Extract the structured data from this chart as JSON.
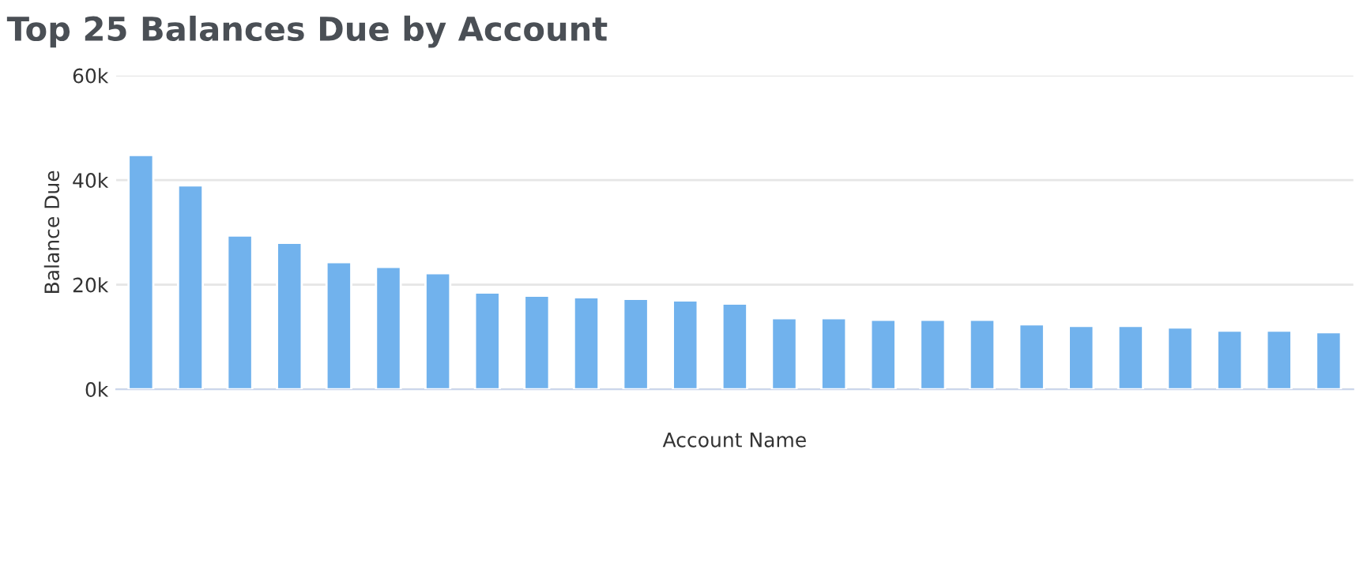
{
  "chart_data": {
    "type": "bar",
    "title": "Top 25 Balances Due by Account",
    "xlabel": "Account Name",
    "ylabel": "Balance Due",
    "categories": [
      null,
      null,
      null,
      null,
      null,
      null,
      null,
      null,
      null,
      null,
      null,
      null,
      null,
      null,
      null,
      null,
      null,
      null,
      null,
      null,
      null,
      null,
      null,
      null,
      null
    ],
    "series": [
      {
        "color": "#71b2ed",
        "values": [
          44800,
          39000,
          29400,
          28000,
          24300,
          23400,
          22200,
          18500,
          17900,
          17600,
          17300,
          17000,
          16400,
          13600,
          13600,
          13300,
          13300,
          13300,
          12400,
          12100,
          12100,
          11800,
          11200,
          11200,
          10900
        ]
      }
    ],
    "ylim": [
      0,
      60000
    ],
    "yticks": [
      {
        "value": 0,
        "label": "0k"
      },
      {
        "value": 20000,
        "label": "20k"
      },
      {
        "value": 40000,
        "label": "40k"
      },
      {
        "value": 60000,
        "label": "60k"
      }
    ],
    "grid": "y"
  }
}
